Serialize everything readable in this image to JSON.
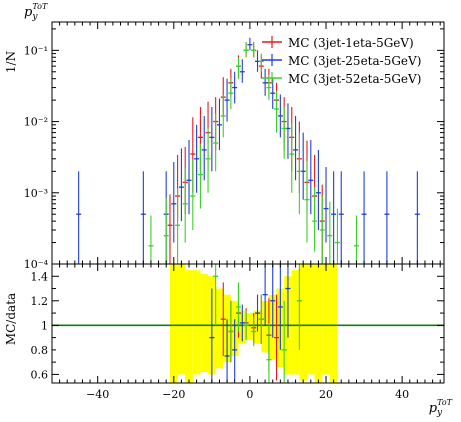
{
  "chart_data": [
    {
      "panel": "main",
      "type": "scatter",
      "title": "p_y^{ToT}",
      "ylabel": "1/N",
      "xlim": [
        -52,
        51
      ],
      "ylim": [
        0.0001,
        0.25
      ],
      "yscale": "log",
      "y_ticks": [
        {
          "v": 0.1,
          "label": "10⁻¹"
        },
        {
          "v": 0.01,
          "label": "10⁻²"
        },
        {
          "v": 0.001,
          "label": "10⁻³"
        },
        {
          "v": 0.0001,
          "label": "10⁻⁴"
        }
      ],
      "legend": "top-right",
      "series": [
        {
          "name": "MC (3jet-1eta-5GeV)",
          "color": "#e41a1c",
          "x": [
            -21,
            -19,
            -17,
            -15,
            -13,
            -11,
            -9,
            -7,
            -5,
            -3,
            -1,
            1,
            3,
            5,
            7,
            9,
            11,
            13,
            15,
            17,
            19
          ],
          "y": [
            0.00035,
            0.0009,
            0.0014,
            0.0035,
            0.006,
            0.007,
            0.01,
            0.022,
            0.035,
            0.06,
            0.1,
            0.1,
            0.06,
            0.035,
            0.02,
            0.01,
            0.006,
            0.003,
            0.0014,
            0.0009,
            0.0004
          ],
          "yerr_lo": [
            0.00025,
            0.0005,
            0.0009,
            0.0025,
            0.004,
            0.005,
            0.006,
            0.01,
            0.012,
            0.02,
            0.02,
            0.02,
            0.02,
            0.012,
            0.009,
            0.006,
            0.004,
            0.002,
            0.0009,
            0.0005,
            0.0003
          ],
          "yerr_hi": [
            0.0006,
            0.0025,
            0.003,
            0.008,
            0.01,
            0.012,
            0.012,
            0.02,
            0.02,
            0.025,
            0.03,
            0.03,
            0.025,
            0.02,
            0.015,
            0.012,
            0.01,
            0.007,
            0.004,
            0.0025,
            0.0009
          ]
        },
        {
          "name": "MC (3jet-25eta-5GeV)",
          "color": "#1f3fd6",
          "x": [
            -45,
            -28,
            -22,
            -20,
            -18,
            -16,
            -14,
            -12,
            -10,
            -8,
            -6,
            -4,
            -2,
            0,
            2,
            4,
            6,
            8,
            10,
            12,
            14,
            16,
            18,
            20,
            22,
            24,
            30,
            36,
            44
          ],
          "y": [
            0.0005,
            0.0005,
            0.0005,
            0.0007,
            0.0012,
            0.0015,
            0.003,
            0.004,
            0.006,
            0.009,
            0.02,
            0.03,
            0.05,
            0.12,
            0.07,
            0.035,
            0.025,
            0.012,
            0.008,
            0.004,
            0.002,
            0.0015,
            0.001,
            0.0006,
            0.0005,
            0.0005,
            0.0005,
            0.0005,
            0.0005
          ],
          "yerr_lo": [
            0.0004,
            0.0004,
            0.0004,
            0.0005,
            0.0008,
            0.001,
            0.002,
            0.0025,
            0.004,
            0.005,
            0.01,
            0.012,
            0.015,
            0.02,
            0.02,
            0.012,
            0.01,
            0.006,
            0.005,
            0.0025,
            0.0012,
            0.001,
            0.0007,
            0.0004,
            0.0004,
            0.0004,
            0.0004,
            0.0004,
            0.0004
          ],
          "yerr_hi": [
            0.0015,
            0.0015,
            0.0015,
            0.002,
            0.003,
            0.004,
            0.006,
            0.008,
            0.01,
            0.012,
            0.02,
            0.02,
            0.025,
            0.03,
            0.03,
            0.02,
            0.015,
            0.012,
            0.01,
            0.008,
            0.005,
            0.004,
            0.003,
            0.0017,
            0.0015,
            0.0015,
            0.0015,
            0.0015,
            0.0015
          ]
        },
        {
          "name": "MC (3jet-52eta-5GeV)",
          "color": "#3bd12a",
          "x": [
            -26,
            -22,
            -19,
            -17,
            -15,
            -13,
            -11,
            -9,
            -7,
            -5,
            -3,
            -1,
            1,
            3,
            5,
            7,
            9,
            11,
            13,
            15,
            17,
            19,
            21,
            23,
            28
          ],
          "y": [
            0.00018,
            0.00025,
            0.00035,
            0.0007,
            0.0009,
            0.0018,
            0.003,
            0.005,
            0.012,
            0.025,
            0.06,
            0.1,
            0.1,
            0.07,
            0.03,
            0.015,
            0.008,
            0.0035,
            0.002,
            0.0008,
            0.0004,
            0.0003,
            0.00025,
            0.0002,
            0.00018
          ],
          "yerr_lo": [
            8e-05,
            0.00015,
            0.00025,
            0.0005,
            0.0006,
            0.0012,
            0.002,
            0.003,
            0.006,
            0.01,
            0.02,
            0.02,
            0.02,
            0.02,
            0.01,
            0.008,
            0.005,
            0.0025,
            0.0015,
            0.0006,
            0.00025,
            0.0002,
            0.00015,
            0.0001,
            8e-05
          ],
          "yerr_hi": [
            0.0003,
            0.0006,
            0.0008,
            0.0015,
            0.002,
            0.003,
            0.005,
            0.008,
            0.012,
            0.015,
            0.02,
            0.03,
            0.03,
            0.02,
            0.015,
            0.012,
            0.008,
            0.006,
            0.005,
            0.002,
            0.0008,
            0.0006,
            0.0005,
            0.0004,
            0.0003
          ]
        }
      ]
    },
    {
      "panel": "ratio",
      "type": "scatter",
      "ylabel": "MC/data",
      "xlabel": "p_y^{ToT}",
      "xlim": [
        -52,
        51
      ],
      "ylim": [
        0.53,
        1.5
      ],
      "y_ticks": [
        0.6,
        0.8,
        1,
        1.2,
        1.4
      ],
      "x_ticks": [
        -40,
        -20,
        0,
        20,
        40
      ],
      "reference_line": 1,
      "reference_color": "#1a7a1a",
      "uncertainty_band_color": "#ffff00",
      "uncertainty_band": [
        {
          "x": [
            -21,
            -19
          ],
          "lo": 0.53,
          "hi": 1.5
        },
        {
          "x": [
            -19,
            -17
          ],
          "lo": 0.6,
          "hi": 1.5
        },
        {
          "x": [
            -17,
            -15
          ],
          "lo": 0.53,
          "hi": 1.45
        },
        {
          "x": [
            -15,
            -13
          ],
          "lo": 0.6,
          "hi": 1.45
        },
        {
          "x": [
            -13,
            -11
          ],
          "lo": 0.62,
          "hi": 1.42
        },
        {
          "x": [
            -11,
            -9
          ],
          "lo": 0.6,
          "hi": 1.4
        },
        {
          "x": [
            -9,
            -7
          ],
          "lo": 0.65,
          "hi": 1.3
        },
        {
          "x": [
            -7,
            -5
          ],
          "lo": 0.7,
          "hi": 1.25
        },
        {
          "x": [
            -5,
            -3
          ],
          "lo": 0.75,
          "hi": 1.2
        },
        {
          "x": [
            -3,
            -1
          ],
          "lo": 0.85,
          "hi": 1.12
        },
        {
          "x": [
            -1,
            1
          ],
          "lo": 0.88,
          "hi": 1.1
        },
        {
          "x": [
            1,
            3
          ],
          "lo": 0.85,
          "hi": 1.12
        },
        {
          "x": [
            3,
            5
          ],
          "lo": 0.78,
          "hi": 1.2
        },
        {
          "x": [
            5,
            7
          ],
          "lo": 0.72,
          "hi": 1.25
        },
        {
          "x": [
            7,
            9
          ],
          "lo": 0.66,
          "hi": 1.3
        },
        {
          "x": [
            9,
            11
          ],
          "lo": 0.6,
          "hi": 1.4
        },
        {
          "x": [
            11,
            13
          ],
          "lo": 0.6,
          "hi": 1.45
        },
        {
          "x": [
            13,
            15
          ],
          "lo": 0.55,
          "hi": 1.5
        },
        {
          "x": [
            15,
            17
          ],
          "lo": 0.6,
          "hi": 1.5
        },
        {
          "x": [
            17,
            19
          ],
          "lo": 0.53,
          "hi": 1.5
        },
        {
          "x": [
            19,
            21
          ],
          "lo": 0.6,
          "hi": 1.5
        },
        {
          "x": [
            21,
            23
          ],
          "lo": 0.53,
          "hi": 1.5
        }
      ],
      "series": [
        {
          "name": "MC (3jet-1eta-5GeV)",
          "color": "#e41a1c",
          "x": [
            -7,
            -5,
            -3,
            -1,
            1,
            3,
            5,
            7
          ],
          "y": [
            1.05,
            0.95,
            1.1,
            1.02,
            0.98,
            1.05,
            0.92,
            0.9
          ],
          "yerr": [
            0.3,
            0.25,
            0.2,
            0.12,
            0.12,
            0.2,
            0.3,
            0.35
          ]
        },
        {
          "name": "MC (3jet-25eta-5GeV)",
          "color": "#1f3fd6",
          "x": [
            -10,
            -6,
            -4,
            -2,
            2,
            4,
            6,
            8,
            10
          ],
          "y": [
            0.9,
            0.75,
            0.8,
            1.02,
            1.1,
            1.25,
            1.2,
            1.15,
            1.3
          ],
          "yerr": [
            0.4,
            0.3,
            0.25,
            0.15,
            0.15,
            0.25,
            0.3,
            0.35,
            0.4
          ]
        },
        {
          "name": "MC (3jet-52eta-5GeV)",
          "color": "#3bd12a",
          "x": [
            -9,
            -5,
            -3,
            -1,
            1,
            3,
            5,
            9,
            13
          ],
          "y": [
            1.4,
            0.95,
            1.15,
            1.0,
            0.95,
            1.05,
            0.72,
            0.8,
            1.2
          ],
          "yerr": [
            0.4,
            0.25,
            0.2,
            0.12,
            0.12,
            0.2,
            0.3,
            0.4,
            0.4
          ]
        }
      ]
    }
  ]
}
